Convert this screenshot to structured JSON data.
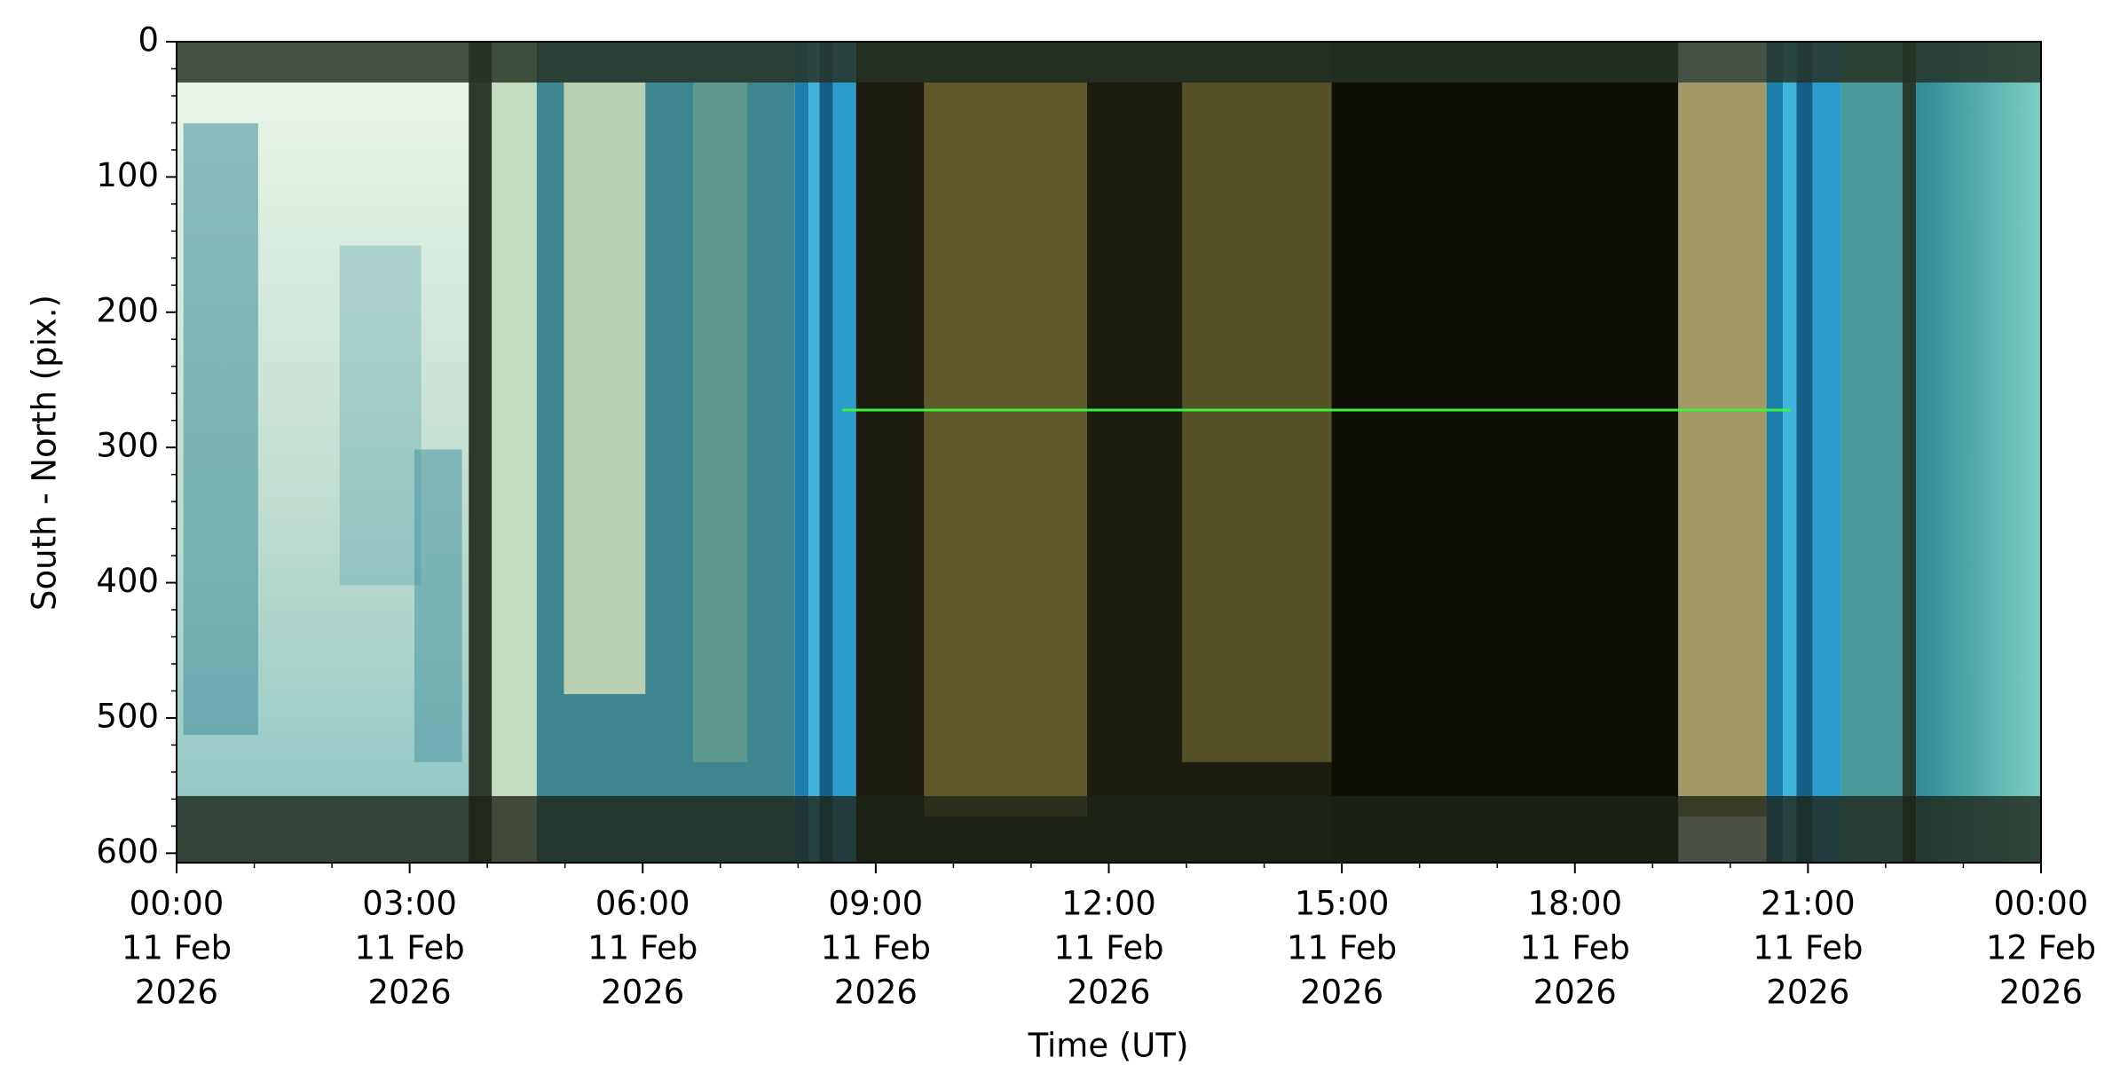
{
  "chart_data": {
    "type": "image",
    "x_label": "Time (UT)",
    "y_label": "South - North (pix.)",
    "xlim": [
      "2026-02-11T00:00",
      "2026-02-12T00:00"
    ],
    "xticks": [
      {
        "value": "2026-02-11T00:00",
        "label": [
          "00:00",
          "11 Feb",
          "2026"
        ]
      },
      {
        "value": "2026-02-11T03:00",
        "label": [
          "03:00",
          "11 Feb",
          "2026"
        ]
      },
      {
        "value": "2026-02-11T06:00",
        "label": [
          "06:00",
          "11 Feb",
          "2026"
        ]
      },
      {
        "value": "2026-02-11T09:00",
        "label": [
          "09:00",
          "11 Feb",
          "2026"
        ]
      },
      {
        "value": "2026-02-11T12:00",
        "label": [
          "12:00",
          "11 Feb",
          "2026"
        ]
      },
      {
        "value": "2026-02-11T15:00",
        "label": [
          "15:00",
          "11 Feb",
          "2026"
        ]
      },
      {
        "value": "2026-02-11T18:00",
        "label": [
          "18:00",
          "11 Feb",
          "2026"
        ]
      },
      {
        "value": "2026-02-11T21:00",
        "label": [
          "21:00",
          "11 Feb",
          "2026"
        ]
      },
      {
        "value": "2026-02-12T00:00",
        "label": [
          "00:00",
          "12 Feb",
          "2026"
        ]
      }
    ],
    "ylim": [
      607,
      0
    ],
    "yticks": [
      0,
      100,
      200,
      300,
      400,
      500,
      600
    ]
  }
}
